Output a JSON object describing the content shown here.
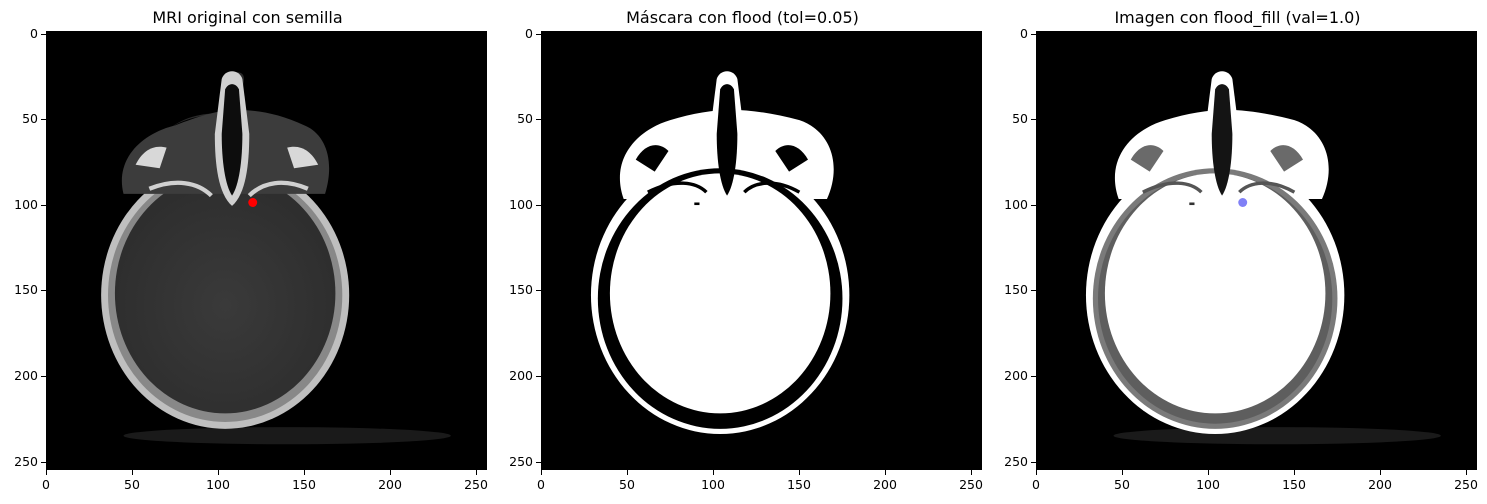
{
  "figure": {
    "panels": [
      {
        "title": "MRI original con semilla",
        "style": "grayscale-ct",
        "seed_point": {
          "x": 120,
          "y": 100,
          "color": "#ff0000"
        }
      },
      {
        "title": "Máscara con flood (tol=0.05)",
        "style": "binary-mask"
      },
      {
        "title": "Imagen con flood_fill (val=1.0)",
        "style": "filled",
        "seed_point": {
          "x": 120,
          "y": 100,
          "color": "#6a6af5"
        }
      }
    ],
    "x_ticks": [
      "0",
      "50",
      "100",
      "150",
      "200",
      "250"
    ],
    "y_ticks": [
      "0",
      "50",
      "100",
      "150",
      "200",
      "250"
    ],
    "axis_range": [
      0,
      255
    ]
  }
}
